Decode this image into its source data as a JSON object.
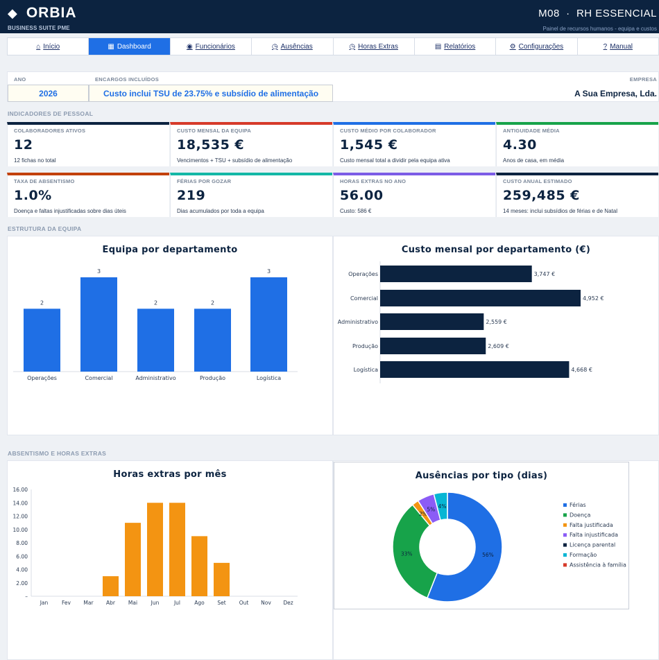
{
  "header": {
    "brand": "ORBIA",
    "brand_sub": "BUSINESS SUITE PME",
    "module": "M08  ·  RH ESSENCIAL",
    "module_sub": "Painel de recursos humanos - equipa e custos"
  },
  "nav": [
    {
      "icon": "⌂",
      "label": "Início"
    },
    {
      "icon": "▦",
      "label": "Dashboard"
    },
    {
      "icon": "◉",
      "label": "Funcionários"
    },
    {
      "icon": "◷",
      "label": "Ausências"
    },
    {
      "icon": "◷",
      "label": "Horas Extras"
    },
    {
      "icon": "▤",
      "label": "Relatórios"
    },
    {
      "icon": "⚙",
      "label": "Configurações"
    },
    {
      "icon": "?",
      "label": "Manual"
    }
  ],
  "meta": {
    "year_label": "ANO",
    "year": "2026",
    "charges_label": "ENCARGOS INCLUÍDOS",
    "charges": "Custo inclui TSU de 23.75% e subsídio de alimentação",
    "company_label": "EMPRESA",
    "company": "A Sua Empresa, Lda."
  },
  "sections": {
    "people": "INDICADORES DE PESSOAL",
    "team": "ESTRUTURA DA EQUIPA",
    "absence": "ABSENTISMO E HORAS EXTRAS"
  },
  "kpis": [
    {
      "label": "COLABORADORES ATIVOS",
      "value": "12",
      "sub": "12 fichas no total",
      "color": "#0c2340"
    },
    {
      "label": "CUSTO MENSAL DA EQUIPA",
      "value": "18,535 €",
      "sub": "Vencimentos + TSU + subsídio de alimentação",
      "color": "#d63a2a"
    },
    {
      "label": "CUSTO MÉDIO POR COLABORADOR",
      "value": "1,545 €",
      "sub": "Custo mensal total a dividir pela equipa ativa",
      "color": "#1f6fe5"
    },
    {
      "label": "ANTIGUIDADE MÉDIA",
      "value": "4.30",
      "sub": "Anos de casa, em média",
      "color": "#17a34a"
    },
    {
      "label": "TAXA DE ABSENTISMO",
      "value": "1.0%",
      "sub": "Doença e faltas injustificadas sobre dias úteis",
      "color": "#c2410c"
    },
    {
      "label": "FÉRIAS POR GOZAR",
      "value": "219",
      "sub": "Dias acumulados por toda a equipa",
      "color": "#14b8a6"
    },
    {
      "label": "HORAS EXTRAS NO ANO",
      "value": "56.00",
      "sub": "Custo: 586 €",
      "color": "#7c5ce6"
    },
    {
      "label": "CUSTO ANUAL ESTIMADO",
      "value": "259,485 €",
      "sub": "14 meses: inclui subsídios de férias e de Natal",
      "color": "#0c2340"
    }
  ],
  "chart_data": [
    {
      "type": "bar",
      "title": "Equipa por departamento",
      "categories": [
        "Operações",
        "Comercial",
        "Administrativo",
        "Produção",
        "Logística"
      ],
      "values": [
        2,
        3,
        2,
        2,
        3
      ],
      "color": "#1f6fe5"
    },
    {
      "type": "bar",
      "orientation": "horizontal",
      "title": "Custo mensal por departamento (€)",
      "categories": [
        "Operações",
        "Comercial",
        "Administrativo",
        "Produção",
        "Logística"
      ],
      "values": [
        3747,
        4952,
        2559,
        2609,
        4668
      ],
      "labels": [
        "3,747 €",
        "4,952 €",
        "2,559 €",
        "2,609 €",
        "4,668 €"
      ],
      "color": "#0c2340"
    },
    {
      "type": "bar",
      "title": "Horas extras por mês",
      "categories": [
        "Jan",
        "Fev",
        "Mar",
        "Abr",
        "Mai",
        "Jun",
        "Jul",
        "Ago",
        "Set",
        "Out",
        "Nov",
        "Dez"
      ],
      "values": [
        0,
        0,
        0,
        3,
        11,
        14,
        14,
        9,
        5,
        0,
        0,
        0
      ],
      "yticks": [
        "–",
        "2.00",
        "4.00",
        "6.00",
        "8.00",
        "10.00",
        "12.00",
        "14.00",
        "16.00"
      ],
      "ylim": [
        0,
        16
      ],
      "color": "#f39412"
    },
    {
      "type": "pie",
      "title": "Ausências por tipo (dias)",
      "legend_position": "right",
      "slices": [
        {
          "name": "Férias",
          "value": 56,
          "label": "56%",
          "color": "#1f6fe5"
        },
        {
          "name": "Doença",
          "value": 33,
          "label": "33%",
          "color": "#17a34a"
        },
        {
          "name": "Falta justificada",
          "value": 2,
          "label": "2%",
          "color": "#f39412"
        },
        {
          "name": "Falta injustificada",
          "value": 5,
          "label": "5%",
          "color": "#8b5cf6"
        },
        {
          "name": "Licença parental",
          "value": 0,
          "label": "",
          "color": "#0c2340"
        },
        {
          "name": "Formação",
          "value": 4,
          "label": "4%",
          "color": "#06b6d4"
        },
        {
          "name": "Assistência à família",
          "value": 0,
          "label": "",
          "color": "#d63a2a"
        }
      ]
    }
  ]
}
